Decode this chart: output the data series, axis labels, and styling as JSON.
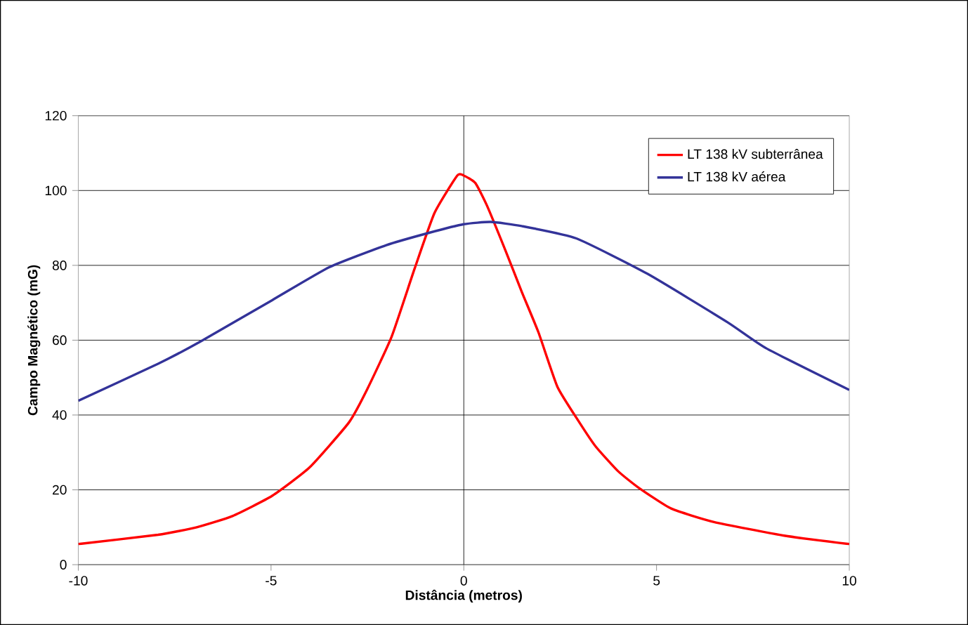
{
  "chart_data": {
    "type": "line",
    "xlabel": "Distância (metros)",
    "ylabel": "Campo Magnético (mG)",
    "xlim": [
      -10,
      10
    ],
    "xticks": [
      -10,
      -5,
      0,
      5,
      10
    ],
    "ylim": [
      0,
      120
    ],
    "yticks": [
      0,
      20,
      40,
      60,
      80,
      100,
      120
    ],
    "grid": "y",
    "legend": "top right",
    "line_style": "solid",
    "ref_lines": [
      {
        "axis": "x",
        "value": 0,
        "color": "#000000"
      }
    ],
    "series": [
      {
        "name": "LT 138 kV subterrânea",
        "color": "#ff0000",
        "x": [
          -10,
          -7.93,
          -6.93,
          -6,
          -4.97,
          -4,
          -2.98,
          -2.5,
          -1.87,
          -1.28,
          -0.76,
          -0.17,
          0,
          0.3,
          0.6,
          1.08,
          1.5,
          1.94,
          2.43,
          3,
          3.42,
          4,
          4.53,
          5.38,
          6.49,
          8.34,
          10
        ],
        "values": [
          5.5,
          8,
          10,
          13,
          18.4,
          26,
          38,
          47,
          61,
          79,
          94,
          104,
          104,
          102,
          96,
          84,
          73,
          62,
          47.5,
          38,
          31.6,
          25,
          20.6,
          15,
          11.4,
          7.7,
          5.5
        ]
      },
      {
        "name": "LT 138 kV aérea",
        "color": "#333399",
        "x": [
          -10,
          -7.93,
          -6.82,
          -4.97,
          -3.49,
          -2.01,
          -0.9,
          0,
          0.7,
          1.5,
          2.92,
          4.77,
          6.84,
          7.85,
          10
        ],
        "values": [
          43.8,
          53.7,
          59.7,
          70.7,
          79.5,
          85.4,
          88.7,
          91,
          91.6,
          90.5,
          87.2,
          77.7,
          64.8,
          57.8,
          46.7
        ]
      }
    ]
  }
}
